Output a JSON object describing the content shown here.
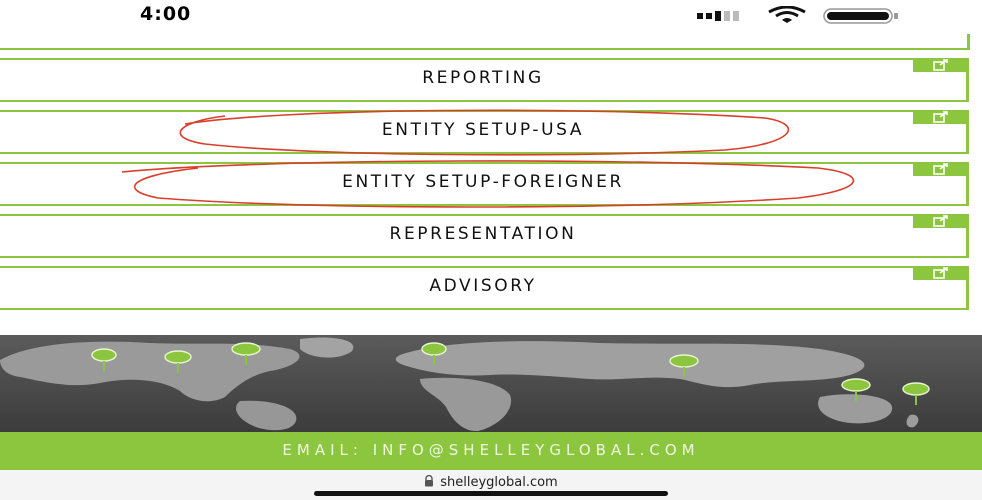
{
  "status_bar": {
    "time": "4:00",
    "icons": [
      "signal-icon",
      "wifi-icon",
      "battery-icon"
    ]
  },
  "menu": {
    "items": [
      {
        "label": "REPORTING",
        "icon": "external-link-icon"
      },
      {
        "label": "ENTITY SETUP-USA",
        "icon": "external-link-icon",
        "circled": true
      },
      {
        "label": "ENTITY SETUP-FOREIGNER",
        "icon": "external-link-icon",
        "circled": true
      },
      {
        "label": "REPRESENTATION",
        "icon": "external-link-icon"
      },
      {
        "label": "ADVISORY",
        "icon": "external-link-icon"
      }
    ]
  },
  "footer": {
    "email": "EMAIL: INFO@SHELLEYGLOBAL.COM"
  },
  "browser": {
    "url": "shelleyglobal.com",
    "lock_icon": "lock-icon"
  },
  "colors": {
    "accent": "#8cc63f",
    "annotation": "#d9402b",
    "map": "#4a4a4a"
  }
}
